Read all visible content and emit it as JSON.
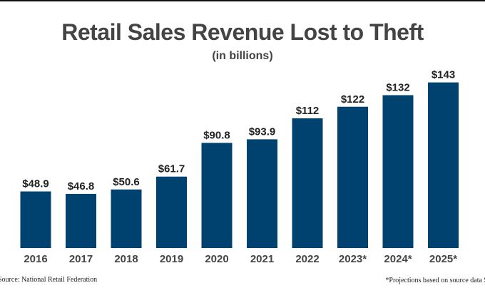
{
  "chart_data": {
    "type": "bar",
    "title": "Retail Sales Revenue Lost to Theft",
    "subtitle": "(in billions)",
    "categories": [
      "2016",
      "2017",
      "2018",
      "2019",
      "2020",
      "2021",
      "2022",
      "2023*",
      "2024*",
      "2025*"
    ],
    "values": [
      48.9,
      46.8,
      50.6,
      61.7,
      90.8,
      93.9,
      112,
      122,
      132,
      143
    ],
    "data_labels": [
      "$48.9",
      "$46.8",
      "$50.6",
      "$61.7",
      "$90.8",
      "$93.9",
      "$112",
      "$122",
      "$132",
      "$143"
    ],
    "xlabel": "",
    "ylabel": "",
    "ylim": [
      0,
      150
    ],
    "grid": false,
    "bar_color": "#00426f"
  },
  "footer": {
    "source": "Source: National Retail Federation",
    "note": "*Projections based on source data S"
  }
}
